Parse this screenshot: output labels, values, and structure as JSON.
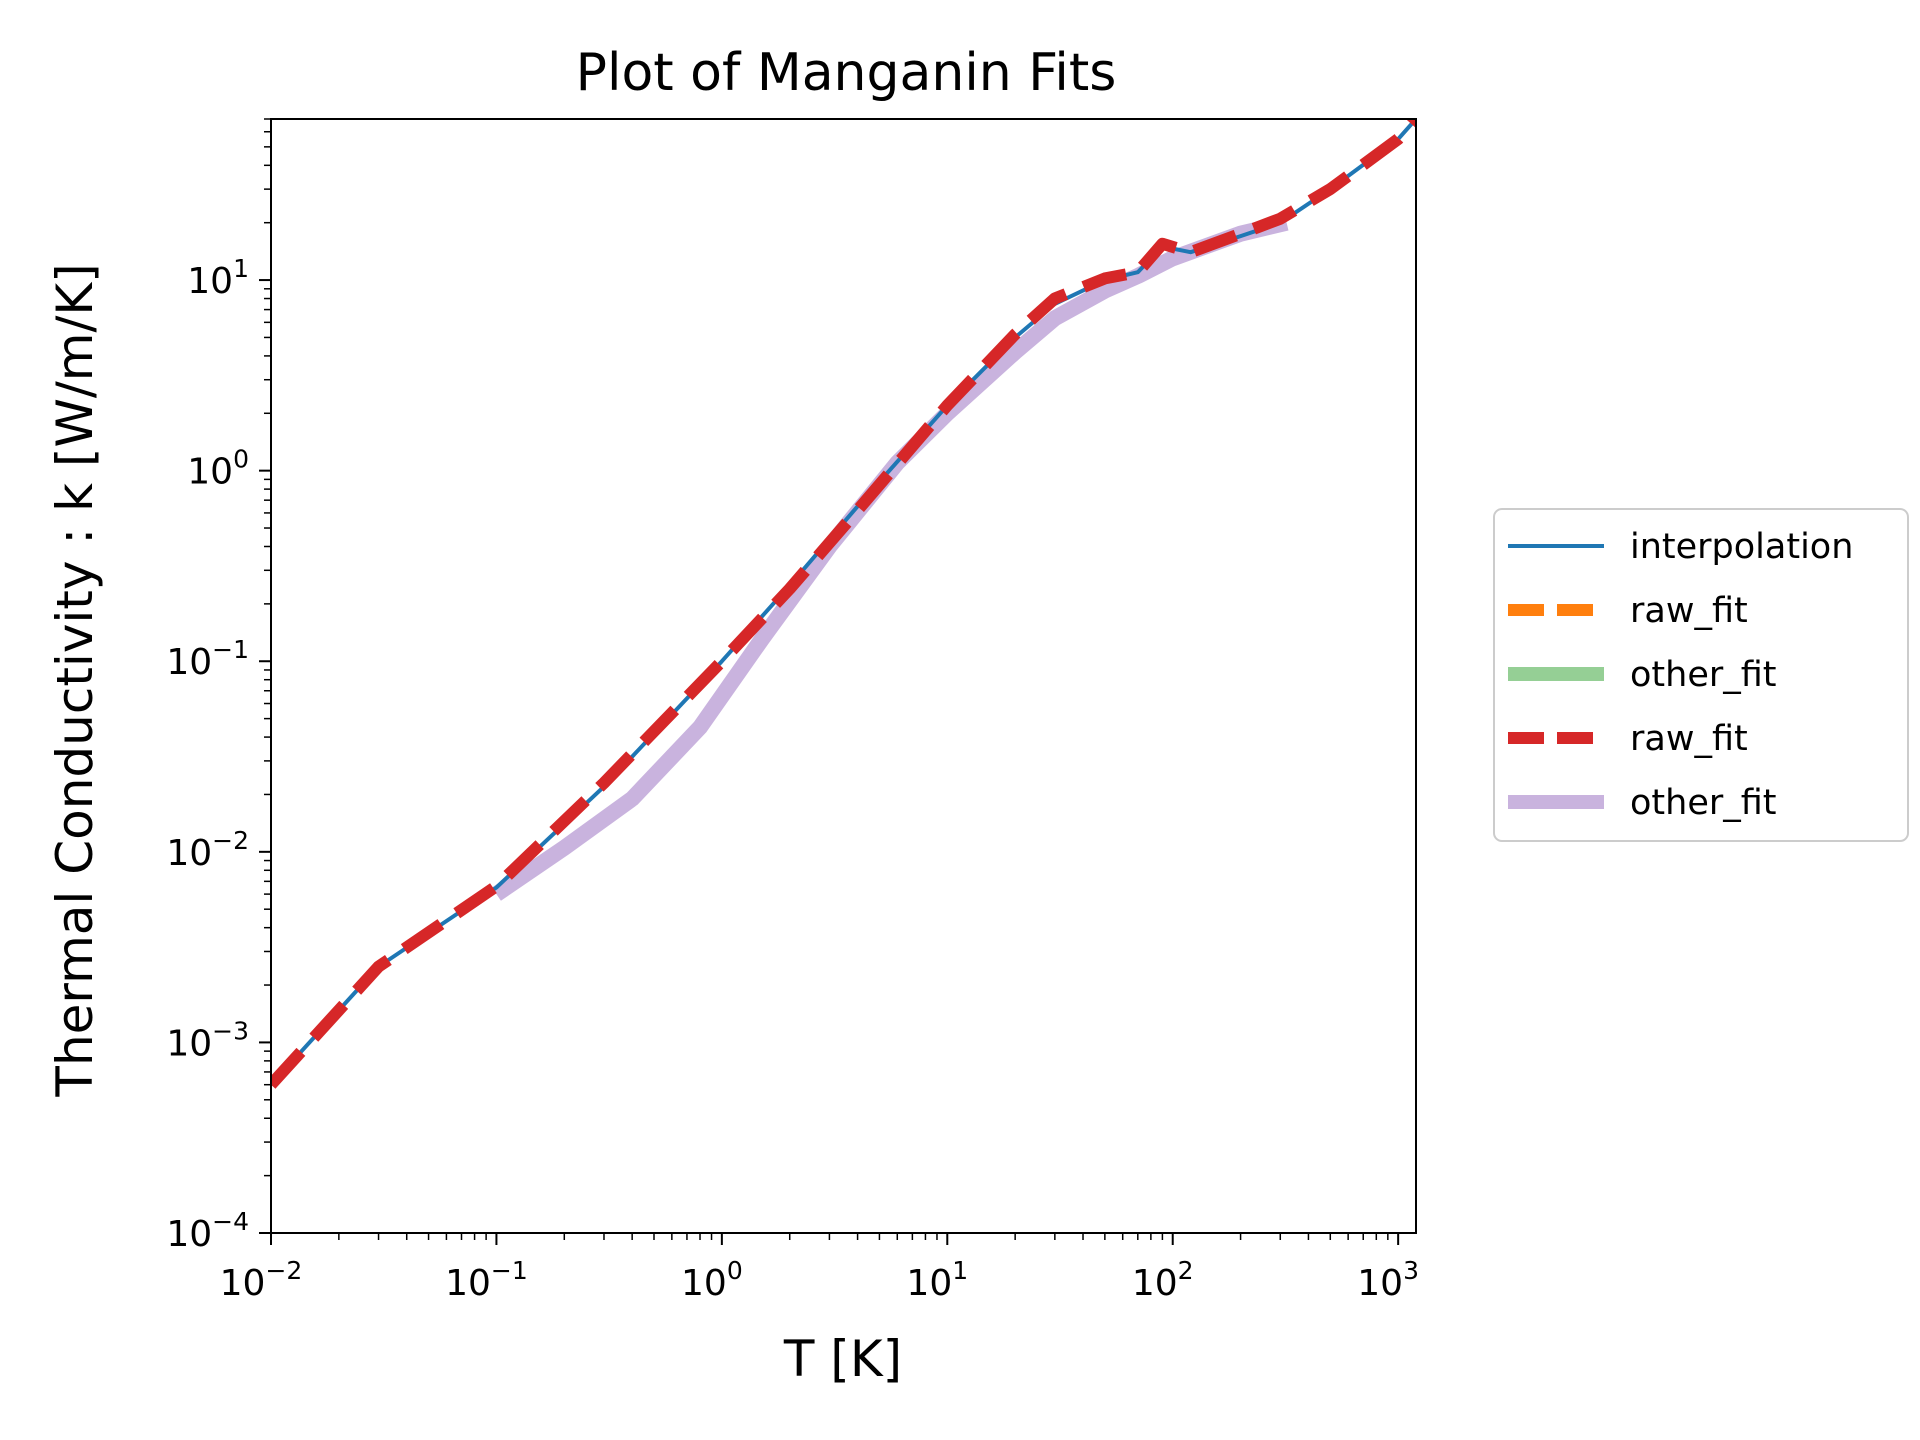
{
  "chart_data": {
    "type": "line",
    "title": "Plot of Manganin Fits",
    "xlabel": "T [K]",
    "ylabel": "Thermal Conductivity : k [W/m/K]",
    "xscale": "log",
    "yscale": "log",
    "xlim": [
      0.01,
      1200
    ],
    "ylim": [
      0.0001,
      70
    ],
    "grid": false,
    "legend_position": "outside-right",
    "x_ticks": [
      {
        "base": "10",
        "exp": "−2"
      },
      {
        "base": "10",
        "exp": "−1"
      },
      {
        "base": "10",
        "exp": "0"
      },
      {
        "base": "10",
        "exp": "1"
      },
      {
        "base": "10",
        "exp": "2"
      },
      {
        "base": "10",
        "exp": "3"
      }
    ],
    "y_ticks": [
      {
        "base": "10",
        "exp": "−4"
      },
      {
        "base": "10",
        "exp": "−3"
      },
      {
        "base": "10",
        "exp": "−2"
      },
      {
        "base": "10",
        "exp": "−1"
      },
      {
        "base": "10",
        "exp": "0"
      },
      {
        "base": "10",
        "exp": "1"
      }
    ],
    "series": [
      {
        "name": "interpolation",
        "color": "#1f77b4",
        "style": "solid",
        "width": 4,
        "opacity": 1,
        "x": [
          0.01,
          0.03,
          0.1,
          0.3,
          1,
          2,
          4,
          10,
          20,
          30,
          50,
          70,
          90,
          120,
          200,
          300,
          500,
          1000,
          1200
        ],
        "y": [
          0.0006,
          0.0025,
          0.0065,
          0.022,
          0.1,
          0.25,
          0.65,
          2.2,
          5.0,
          7.5,
          10.0,
          11.0,
          15.0,
          14.0,
          17.0,
          20.0,
          30.0,
          55.0,
          70.0
        ]
      },
      {
        "name": "raw_fit",
        "color": "#ff7f0e",
        "style": "dashed",
        "width": 12,
        "opacity": 1,
        "x": [],
        "y": []
      },
      {
        "name": "other_fit",
        "color": "#2ca02c",
        "style": "solid",
        "width": 16,
        "opacity": 0.5,
        "x": [],
        "y": []
      },
      {
        "name": "raw_fit",
        "color": "#d62728",
        "style": "dashed",
        "width": 12,
        "opacity": 1,
        "x": [
          0.01,
          0.03,
          0.1,
          0.3,
          1,
          2,
          4,
          10,
          20,
          30,
          50,
          70,
          90,
          120,
          200,
          300,
          500,
          1000,
          1200
        ],
        "y": [
          0.0006,
          0.0025,
          0.0066,
          0.023,
          0.1,
          0.24,
          0.62,
          2.2,
          5.2,
          8.0,
          10.2,
          11.0,
          15.5,
          14.0,
          17.5,
          21.0,
          30.0,
          55.0,
          70.0
        ]
      },
      {
        "name": "other_fit",
        "color": "#9467bd",
        "style": "solid",
        "width": 16,
        "opacity": 0.5,
        "x": [
          0.1,
          0.2,
          0.4,
          0.8,
          1.5,
          3,
          6,
          10,
          20,
          30,
          50,
          70,
          100,
          200,
          320
        ],
        "y": [
          0.006,
          0.0105,
          0.019,
          0.045,
          0.13,
          0.4,
          1.1,
          2.0,
          4.2,
          6.3,
          8.8,
          10.5,
          13.0,
          17.5,
          20.0
        ]
      }
    ]
  }
}
